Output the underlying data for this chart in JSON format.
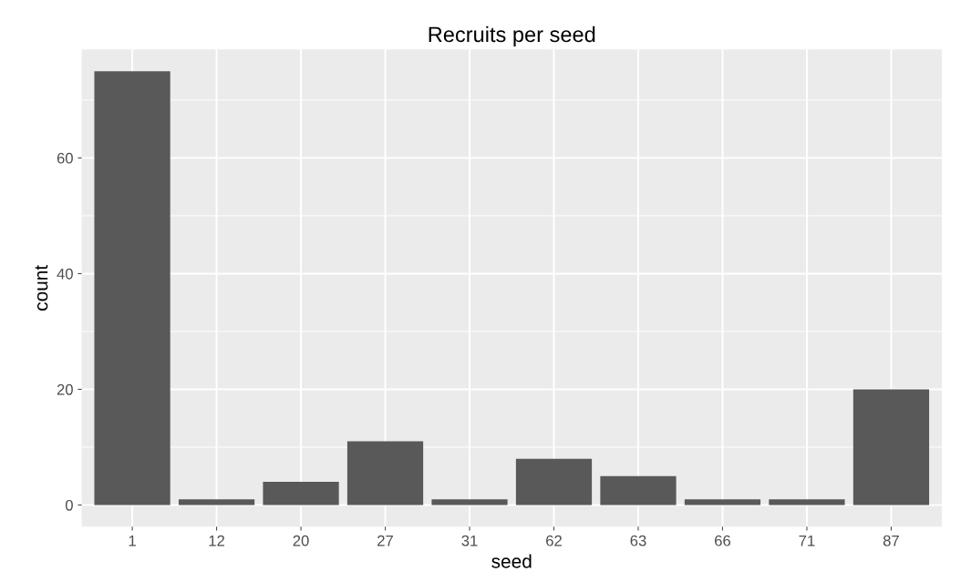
{
  "chart_data": {
    "type": "bar",
    "title": "Recruits per seed",
    "xlabel": "seed",
    "ylabel": "count",
    "categories": [
      "1",
      "12",
      "20",
      "27",
      "31",
      "62",
      "63",
      "66",
      "71",
      "87"
    ],
    "values": [
      75,
      1,
      4,
      11,
      1,
      8,
      5,
      1,
      1,
      20
    ],
    "color": "#595959",
    "ylim": [
      -3.75,
      78.75
    ],
    "yticks": [
      0,
      20,
      40,
      60
    ],
    "grid": true
  }
}
